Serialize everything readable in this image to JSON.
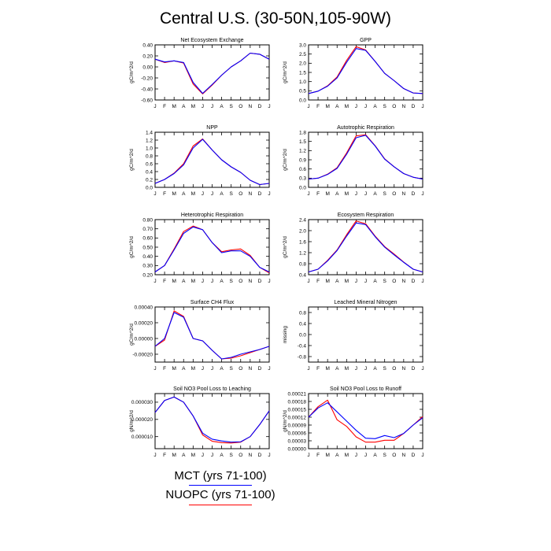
{
  "title": "Central U.S. (30-50N,105-90W)",
  "legend": [
    {
      "label": "MCT (yrs 71-100)",
      "color": "#0000ff"
    },
    {
      "label": "NUOPC (yrs 71-100)",
      "color": "#ff0000"
    }
  ],
  "month_labels": [
    "J",
    "F",
    "M",
    "A",
    "M",
    "J",
    "J",
    "A",
    "S",
    "O",
    "N",
    "D",
    "J"
  ],
  "chart_data": [
    {
      "type": "line",
      "title": "Net Ecosystem Exchange",
      "ylabel": "gC/m^2/d",
      "ylim": [
        -0.6,
        0.4
      ],
      "yticks": [
        "0.40",
        "0.20",
        "0.00",
        "-0.20",
        "-0.40",
        "-0.60"
      ],
      "ytick_values": [
        0.4,
        0.2,
        0.0,
        -0.2,
        -0.4,
        -0.6
      ],
      "x": [
        "J",
        "F",
        "M",
        "A",
        "M",
        "J",
        "J",
        "A",
        "S",
        "O",
        "N",
        "D",
        "J"
      ],
      "series": [
        {
          "name": "MCT (yrs 71-100)",
          "color": "#0000ff",
          "values": [
            0.14,
            0.09,
            0.11,
            0.08,
            -0.28,
            -0.48,
            -0.32,
            -0.15,
            0.0,
            0.11,
            0.25,
            0.23,
            0.14
          ]
        },
        {
          "name": "NUOPC (yrs 71-100)",
          "color": "#ff0000",
          "values": [
            0.14,
            0.08,
            0.11,
            0.07,
            -0.31,
            -0.49,
            -0.33,
            -0.15,
            0.0,
            0.11,
            0.25,
            0.23,
            0.14
          ]
        }
      ]
    },
    {
      "type": "line",
      "title": "GPP",
      "ylabel": "gC/m^2/d",
      "ylim": [
        0.0,
        3.0
      ],
      "yticks": [
        "3.0",
        "2.5",
        "2.0",
        "1.5",
        "1.0",
        "0.5",
        "0.0"
      ],
      "ytick_values": [
        3.0,
        2.5,
        2.0,
        1.5,
        1.0,
        0.5,
        0.0
      ],
      "x": [
        "J",
        "F",
        "M",
        "A",
        "M",
        "J",
        "J",
        "A",
        "S",
        "O",
        "N",
        "D",
        "J"
      ],
      "series": [
        {
          "name": "MCT (yrs 71-100)",
          "color": "#0000ff",
          "values": [
            0.35,
            0.48,
            0.75,
            1.2,
            2.05,
            2.8,
            2.7,
            2.1,
            1.45,
            1.05,
            0.62,
            0.38,
            0.35
          ]
        },
        {
          "name": "NUOPC (yrs 71-100)",
          "color": "#ff0000",
          "values": [
            0.35,
            0.48,
            0.77,
            1.25,
            2.15,
            2.9,
            2.72,
            2.1,
            1.45,
            1.05,
            0.62,
            0.38,
            0.35
          ]
        }
      ]
    },
    {
      "type": "line",
      "title": "NPP",
      "ylabel": "gC/m^2/d",
      "ylim": [
        0.0,
        1.4
      ],
      "yticks": [
        "1.4",
        "1.2",
        "1.0",
        "0.8",
        "0.6",
        "0.4",
        "0.2",
        "0.0"
      ],
      "ytick_values": [
        1.4,
        1.2,
        1.0,
        0.8,
        0.6,
        0.4,
        0.2,
        0.0
      ],
      "x": [
        "J",
        "F",
        "M",
        "A",
        "M",
        "J",
        "J",
        "A",
        "S",
        "O",
        "N",
        "D",
        "J"
      ],
      "series": [
        {
          "name": "MCT (yrs 71-100)",
          "color": "#0000ff",
          "values": [
            0.1,
            0.2,
            0.35,
            0.57,
            1.0,
            1.22,
            0.95,
            0.7,
            0.52,
            0.38,
            0.18,
            0.07,
            0.1
          ]
        },
        {
          "name": "NUOPC (yrs 71-100)",
          "color": "#ff0000",
          "values": [
            0.1,
            0.2,
            0.36,
            0.6,
            1.05,
            1.23,
            0.95,
            0.7,
            0.52,
            0.38,
            0.18,
            0.07,
            0.1
          ]
        }
      ]
    },
    {
      "type": "line",
      "title": "Autotrophic Respiration",
      "ylabel": "gC/m^2/d",
      "ylim": [
        0.0,
        1.8
      ],
      "yticks": [
        "1.8",
        "1.5",
        "1.2",
        "0.9",
        "0.6",
        "0.3",
        "0.0"
      ],
      "ytick_values": [
        1.8,
        1.5,
        1.2,
        0.9,
        0.6,
        0.3,
        0.0
      ],
      "x": [
        "J",
        "F",
        "M",
        "A",
        "M",
        "J",
        "J",
        "A",
        "S",
        "O",
        "N",
        "D",
        "J"
      ],
      "series": [
        {
          "name": "MCT (yrs 71-100)",
          "color": "#0000ff",
          "values": [
            0.27,
            0.3,
            0.42,
            0.62,
            1.08,
            1.62,
            1.7,
            1.35,
            0.92,
            0.67,
            0.45,
            0.33,
            0.27
          ]
        },
        {
          "name": "NUOPC (yrs 71-100)",
          "color": "#ff0000",
          "values": [
            0.27,
            0.3,
            0.43,
            0.64,
            1.12,
            1.68,
            1.72,
            1.36,
            0.93,
            0.67,
            0.45,
            0.33,
            0.27
          ]
        }
      ]
    },
    {
      "type": "line",
      "title": "Heterotrophic Respiration",
      "ylabel": "gC/m^2/d",
      "ylim": [
        0.2,
        0.8
      ],
      "yticks": [
        "0.80",
        "0.70",
        "0.60",
        "0.50",
        "0.40",
        "0.30",
        "0.20"
      ],
      "ytick_values": [
        0.8,
        0.7,
        0.6,
        0.5,
        0.4,
        0.3,
        0.2
      ],
      "x": [
        "J",
        "F",
        "M",
        "A",
        "M",
        "J",
        "J",
        "A",
        "S",
        "O",
        "N",
        "D",
        "J"
      ],
      "series": [
        {
          "name": "MCT (yrs 71-100)",
          "color": "#0000ff",
          "values": [
            0.23,
            0.3,
            0.47,
            0.65,
            0.72,
            0.69,
            0.55,
            0.44,
            0.46,
            0.46,
            0.4,
            0.28,
            0.23
          ]
        },
        {
          "name": "NUOPC (yrs 71-100)",
          "color": "#ff0000",
          "values": [
            0.23,
            0.3,
            0.48,
            0.67,
            0.73,
            0.69,
            0.55,
            0.45,
            0.47,
            0.48,
            0.41,
            0.28,
            0.22
          ]
        }
      ]
    },
    {
      "type": "line",
      "title": "Ecosystem Respiration",
      "ylabel": "gC/m^2/d",
      "ylim": [
        0.4,
        2.4
      ],
      "yticks": [
        "2.4",
        "2.0",
        "1.6",
        "1.2",
        "0.8",
        "0.4"
      ],
      "ytick_values": [
        2.4,
        2.0,
        1.6,
        1.2,
        0.8,
        0.4
      ],
      "x": [
        "J",
        "F",
        "M",
        "A",
        "M",
        "J",
        "J",
        "A",
        "S",
        "O",
        "N",
        "D",
        "J"
      ],
      "series": [
        {
          "name": "MCT (yrs 71-100)",
          "color": "#0000ff",
          "values": [
            0.5,
            0.6,
            0.9,
            1.28,
            1.8,
            2.28,
            2.22,
            1.78,
            1.4,
            1.12,
            0.85,
            0.6,
            0.5
          ]
        },
        {
          "name": "NUOPC (yrs 71-100)",
          "color": "#ff0000",
          "values": [
            0.5,
            0.6,
            0.92,
            1.3,
            1.85,
            2.35,
            2.25,
            1.8,
            1.42,
            1.15,
            0.86,
            0.6,
            0.5
          ]
        }
      ]
    },
    {
      "type": "line",
      "title": "Surface CH4 Flux",
      "ylabel": "gC/m^2/d",
      "ylim": [
        -0.0003,
        0.0004
      ],
      "yticks": [
        "0.00040",
        "0.00020",
        "0.00000",
        "-0.00020"
      ],
      "ytick_values": [
        0.0004,
        0.0002,
        0.0,
        -0.0002
      ],
      "x": [
        "J",
        "F",
        "M",
        "A",
        "M",
        "J",
        "J",
        "A",
        "S",
        "O",
        "N",
        "D",
        "J"
      ],
      "series": [
        {
          "name": "MCT (yrs 71-100)",
          "color": "#0000ff",
          "values": [
            -0.0001,
            0.0,
            0.00033,
            0.00027,
            0.0,
            -3e-05,
            -0.00015,
            -0.00026,
            -0.00024,
            -0.0002,
            -0.00017,
            -0.00014,
            -0.0001
          ]
        },
        {
          "name": "NUOPC (yrs 71-100)",
          "color": "#ff0000",
          "values": [
            -0.0001,
            -2e-05,
            0.00035,
            0.00028,
            0.0,
            -3e-05,
            -0.00015,
            -0.00026,
            -0.00025,
            -0.00022,
            -0.00018,
            -0.00014,
            -0.0001
          ]
        }
      ]
    },
    {
      "type": "line",
      "title": "Leached Mineral Nitrogen",
      "ylabel": "missing",
      "ylim": [
        -1.0,
        1.0
      ],
      "yticks": [
        "0.8",
        "0.4",
        "0.0",
        "-0.4",
        "-0.8"
      ],
      "ytick_values": [
        0.8,
        0.4,
        0.0,
        -0.4,
        -0.8
      ],
      "x": [
        "J",
        "F",
        "M",
        "A",
        "M",
        "J",
        "J",
        "A",
        "S",
        "O",
        "N",
        "D",
        "J"
      ],
      "series": []
    },
    {
      "type": "line",
      "title": "Soil NO3 Pool Loss to Leaching",
      "ylabel": "gN/m^2/d",
      "ylim": [
        3e-06,
        3.5e-05
      ],
      "yticks": [
        "0.000030",
        "0.000020",
        "0.000010"
      ],
      "ytick_values": [
        3e-05,
        2e-05,
        1e-05
      ],
      "x": [
        "J",
        "F",
        "M",
        "A",
        "M",
        "J",
        "J",
        "A",
        "S",
        "O",
        "N",
        "D",
        "J"
      ],
      "series": [
        {
          "name": "MCT (yrs 71-100)",
          "color": "#0000ff",
          "values": [
            2.4e-05,
            3.1e-05,
            3.3e-05,
            3e-05,
            2.2e-05,
            1.2e-05,
            8.5e-06,
            7.5e-06,
            6.8e-06,
            7e-06,
            1e-05,
            1.7e-05,
            2.5e-05
          ]
        },
        {
          "name": "NUOPC (yrs 71-100)",
          "color": "#ff0000",
          "values": [
            2.4e-05,
            3.1e-05,
            3.3e-05,
            3e-05,
            2.2e-05,
            1.1e-05,
            7.3e-06,
            6.5e-06,
            6.3e-06,
            6.8e-06,
            1e-05,
            1.7e-05,
            2.5e-05
          ]
        }
      ]
    },
    {
      "type": "line",
      "title": "Soil NO3 Pool Loss to Runoff",
      "ylabel": "gN/m^2/d",
      "ylim": [
        0.0,
        0.00021
      ],
      "yticks": [
        "0.00021",
        "0.00018",
        "0.00015",
        "0.00012",
        "0.00009",
        "0.00006",
        "0.00003",
        "0.00000"
      ],
      "ytick_values": [
        0.00021,
        0.00018,
        0.00015,
        0.00012,
        9e-05,
        6e-05,
        3e-05,
        0.0
      ],
      "x": [
        "J",
        "F",
        "M",
        "A",
        "M",
        "J",
        "J",
        "A",
        "S",
        "O",
        "N",
        "D",
        "J"
      ],
      "series": [
        {
          "name": "MCT (yrs 71-100)",
          "color": "#0000ff",
          "values": [
            0.00012,
            0.000155,
            0.000175,
            0.00014,
            0.000105,
            7e-05,
            4e-05,
            3.8e-05,
            5e-05,
            4.2e-05,
            5.8e-05,
            9e-05,
            0.000118
          ]
        },
        {
          "name": "NUOPC (yrs 71-100)",
          "color": "#ff0000",
          "values": [
            0.00012,
            0.00016,
            0.000185,
            0.00011,
            8.5e-05,
            4.5e-05,
            2.5e-05,
            2.5e-05,
            3.2e-05,
            3.2e-05,
            5.8e-05,
            9e-05,
            0.000122
          ]
        }
      ]
    }
  ]
}
